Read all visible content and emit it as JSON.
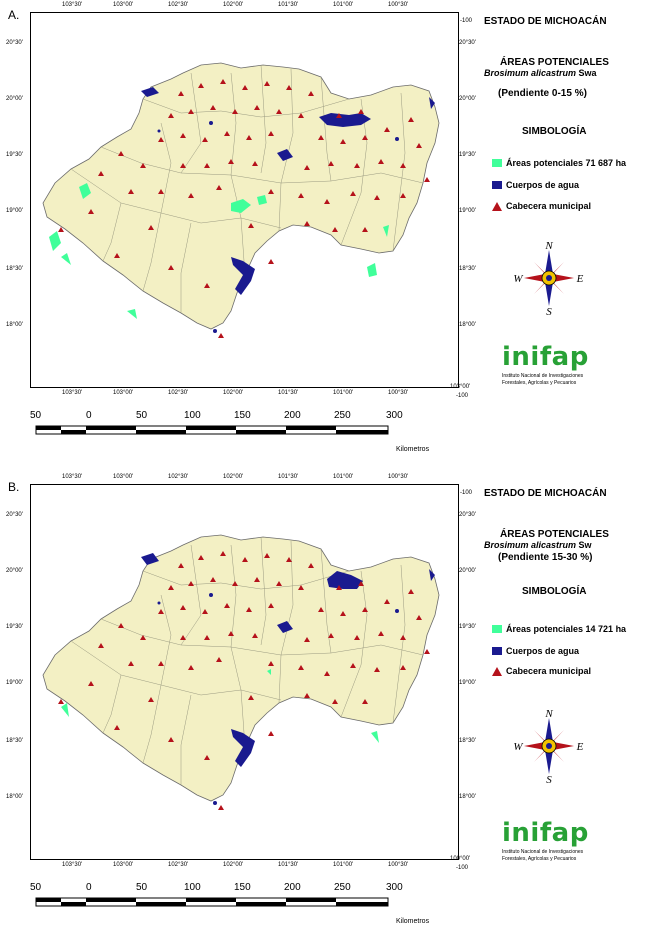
{
  "panels": [
    {
      "letter": "A.",
      "title": "ESTADO DE MICHOACÁN",
      "subtitle": "ÁREAS POTENCIALES",
      "species_genus": "Brosimum alicastrum",
      "species_code": "Swa",
      "slope": "(Pendiente 0-15 %)",
      "symbology": "SIMBOLOGÍA",
      "legend_areas": "Áreas potenciales 71 687 ha",
      "legend_water": "Cuerpos de agua",
      "legend_seat": "Cabecera municipal",
      "corner_label": "-100",
      "corner_label_br": "103°00'",
      "corner_label_br2": "-100"
    },
    {
      "letter": "B.",
      "title": "ESTADO DE MICHOACÁN",
      "subtitle": "ÁREAS POTENCIALES",
      "species_genus": "Brosimum alicastrum",
      "species_code": "Sw",
      "slope": "(Pendiente 15-30 %)",
      "symbology": "SIMBOLOGÍA",
      "legend_areas": "Áreas potenciales 14 721 ha",
      "legend_water": "Cuerpos de agua",
      "legend_seat": "Cabecera municipal",
      "corner_label": "-100",
      "corner_label_br": "100°00'",
      "corner_label_br2": "-100"
    }
  ],
  "longitudes": [
    "103°30'",
    "103°00'",
    "102°30'",
    "102°00'",
    "101°30'",
    "101°00'",
    "100°30'"
  ],
  "latitudes": [
    "20°30'",
    "20°00'",
    "19°30'",
    "19°00'",
    "18°30'",
    "18°00'"
  ],
  "scale": {
    "labels": [
      "50",
      "0",
      "50",
      "100",
      "150",
      "200",
      "250",
      "300"
    ],
    "unit": "Kilometros"
  },
  "compass": {
    "n": "N",
    "s": "S",
    "e": "E",
    "w": "W"
  },
  "logo": {
    "word": "inifap",
    "line1": "Instituto Nacional de Investigaciones",
    "line2": "Forestales, Agrícolas y Pecuarios"
  },
  "colors": {
    "land": "#f3f0c4",
    "border": "#7a7a7a",
    "potential": "#40ff9a",
    "water": "#1a1a8f",
    "seat": "#b5121b",
    "logo_green": "#28a136"
  }
}
